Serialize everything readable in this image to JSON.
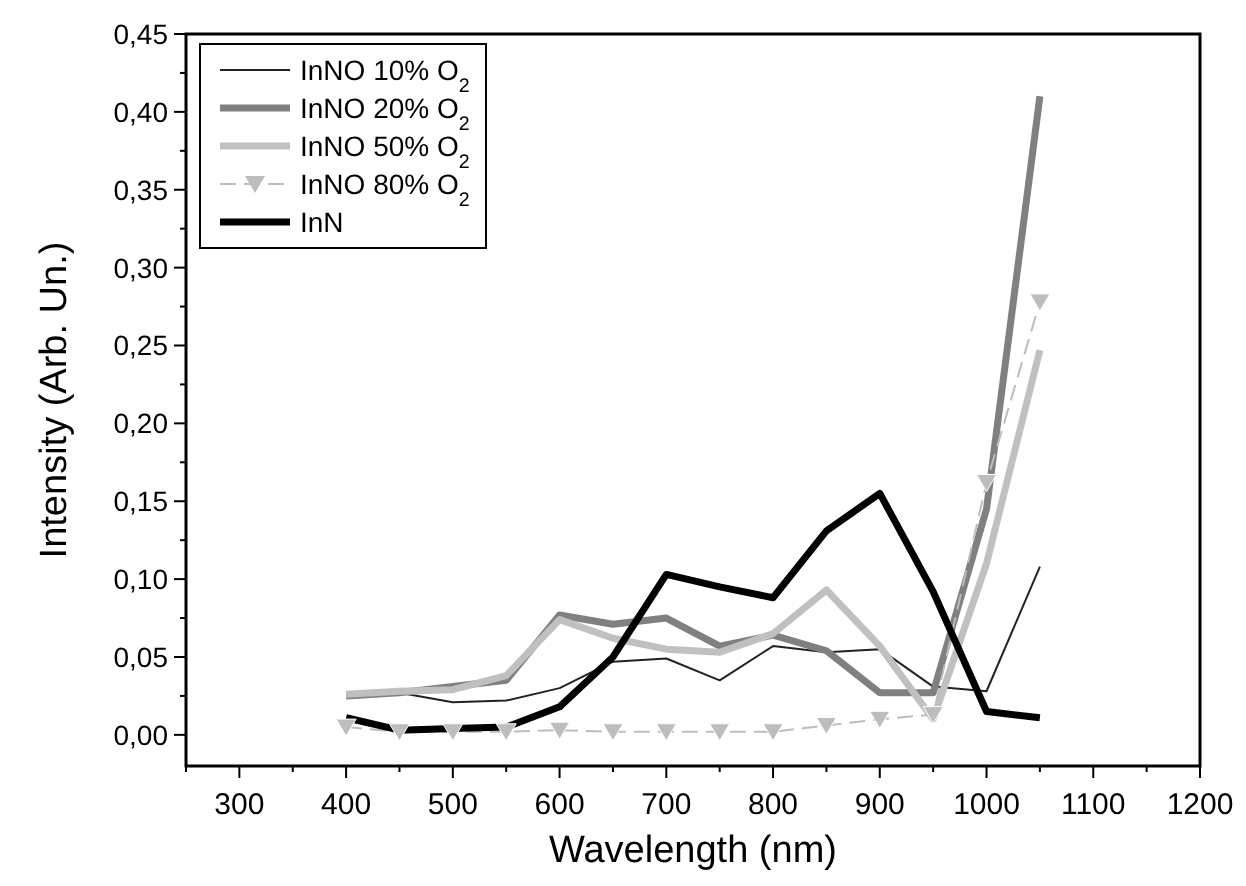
{
  "chart_data": {
    "type": "line",
    "xlabel": "Wavelength (nm)",
    "ylabel": "Intensity (Arb. Un.)",
    "x": [
      400,
      450,
      500,
      550,
      600,
      650,
      700,
      750,
      800,
      850,
      900,
      950,
      1000,
      1050
    ],
    "series": [
      {
        "name": "InNO 10% O$_{2}$",
        "color": "#222222",
        "marker": "none",
        "line_style": "solid",
        "values": [
          0.025,
          0.027,
          0.021,
          0.022,
          0.03,
          0.047,
          0.049,
          0.035,
          0.057,
          0.053,
          0.055,
          0.031,
          0.028,
          0.108
        ]
      },
      {
        "name": "InNO 20% O$_{2}$",
        "color": "#808080",
        "marker": "none",
        "line_style": "solid",
        "values": [
          0.025,
          0.027,
          0.031,
          0.035,
          0.077,
          0.071,
          0.075,
          0.057,
          0.064,
          0.054,
          0.027,
          0.027,
          0.145,
          0.41
        ]
      },
      {
        "name": "InNO 50% O$_{2}$",
        "color": "#c0c0c0",
        "marker": "none",
        "line_style": "solid",
        "values": [
          0.026,
          0.028,
          0.029,
          0.038,
          0.074,
          0.062,
          0.055,
          0.053,
          0.065,
          0.093,
          0.057,
          0.01,
          0.11,
          0.247
        ]
      },
      {
        "name": "InNO 80% O$_{2}$",
        "color": "#bdbdbd",
        "marker": "triangle",
        "line_style": "dashed",
        "values": [
          0.005,
          0.002,
          0.002,
          0.002,
          0.003,
          0.002,
          0.002,
          0.002,
          0.002,
          0.006,
          0.01,
          0.013,
          0.162,
          0.278
        ]
      },
      {
        "name": "InN",
        "color": "#000000",
        "marker": "none",
        "line_style": "solid",
        "values": [
          0.011,
          0.003,
          0.004,
          0.005,
          0.018,
          0.05,
          0.103,
          0.095,
          0.088,
          0.131,
          0.155,
          0.092,
          0.015,
          0.011
        ]
      }
    ],
    "xlim": [
      250,
      1200
    ],
    "xticks": [
      300,
      400,
      500,
      600,
      700,
      800,
      900,
      1000,
      1100,
      1200
    ],
    "ylim": [
      -0.02,
      0.45
    ],
    "yticks": [
      {
        "value": 0,
        "label": "0,00"
      },
      {
        "value": 0.05,
        "label": "0,05"
      },
      {
        "value": 0.1,
        "label": "0,10"
      },
      {
        "value": 0.15,
        "label": "0,15"
      },
      {
        "value": 0.2,
        "label": "0,20"
      },
      {
        "value": 0.25,
        "label": "0,25"
      },
      {
        "value": 0.3,
        "label": "0,30"
      },
      {
        "value": 0.35,
        "label": "0,35"
      },
      {
        "value": 0.4,
        "label": "0,40"
      },
      {
        "value": 0.45,
        "label": "0,45"
      }
    ],
    "grid": false,
    "legend": "top left"
  }
}
